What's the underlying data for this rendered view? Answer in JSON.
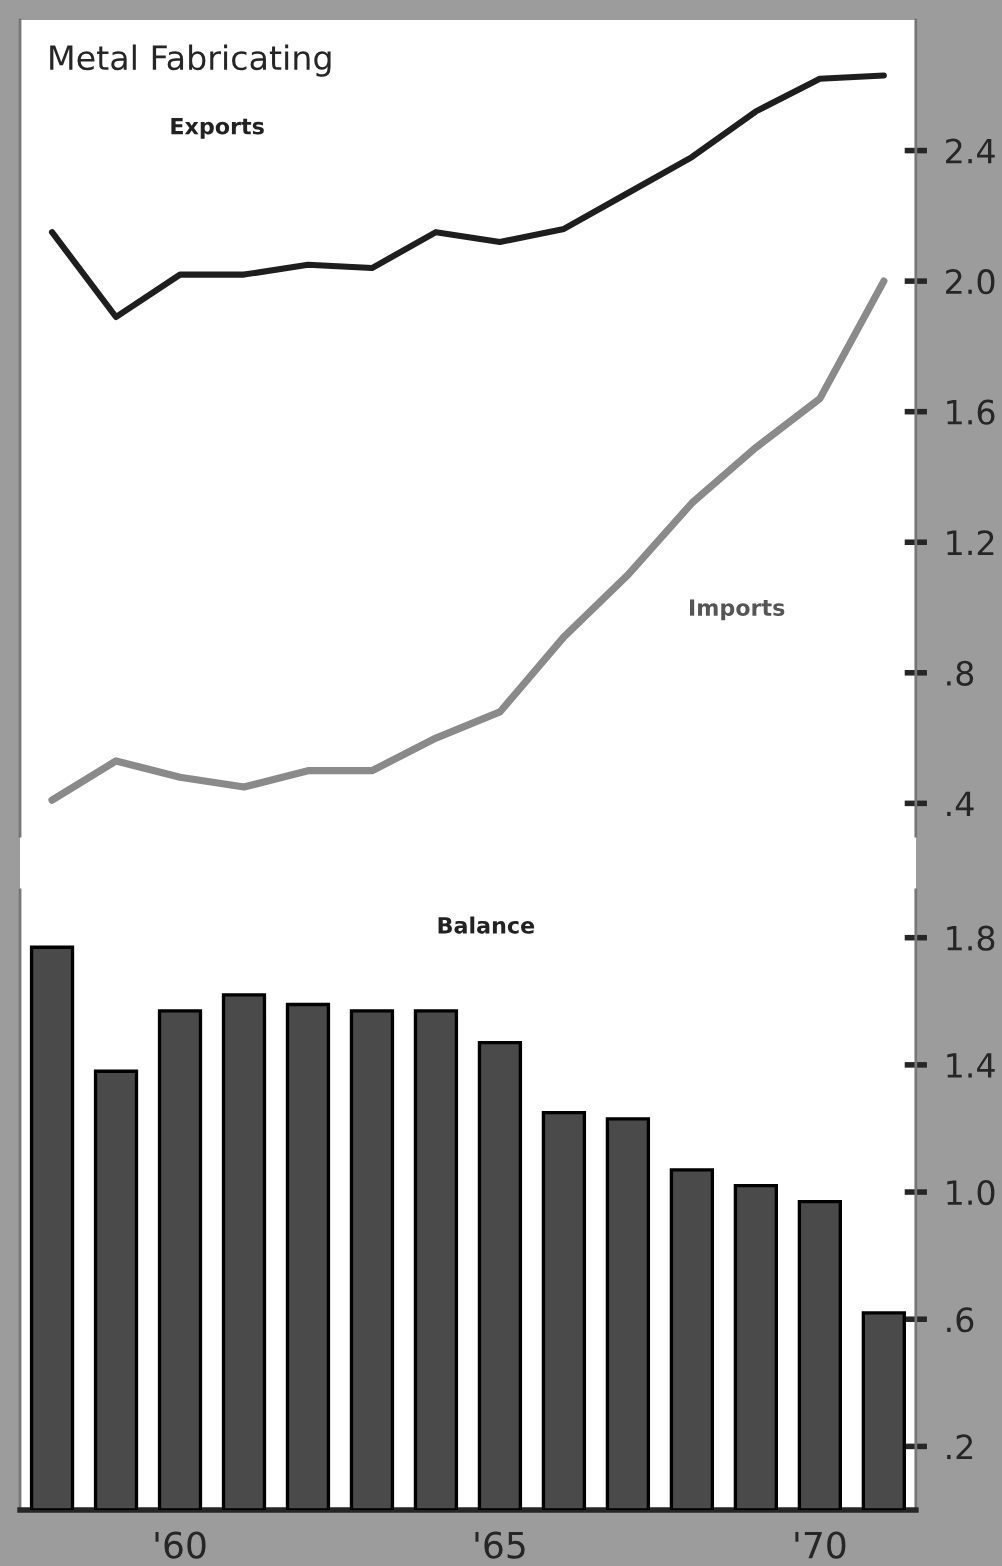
{
  "chart_data": [
    {
      "type": "line",
      "title": "Metal Fabricating",
      "series": [
        {
          "name": "Exports",
          "color": "#1e1e1e",
          "x": [
            1958,
            1959,
            1960,
            1961,
            1962,
            1963,
            1964,
            1965,
            1966,
            1967,
            1968,
            1969,
            1970,
            1971
          ],
          "values": [
            2.15,
            1.89,
            2.02,
            2.02,
            2.05,
            2.04,
            2.15,
            2.12,
            2.16,
            2.27,
            2.38,
            2.52,
            2.62,
            2.63
          ]
        },
        {
          "name": "Imports",
          "color": "#8a8a8a",
          "x": [
            1958,
            1959,
            1960,
            1961,
            1962,
            1963,
            1964,
            1965,
            1966,
            1967,
            1968,
            1969,
            1970,
            1971
          ],
          "values": [
            0.41,
            0.53,
            0.48,
            0.45,
            0.5,
            0.5,
            0.6,
            0.68,
            0.91,
            1.1,
            1.32,
            1.49,
            1.64,
            2.0
          ]
        }
      ],
      "xlim": [
        1957.5,
        1971.5
      ],
      "ylim": [
        0.3,
        2.8
      ],
      "yticks": [
        {
          "value": 0.4,
          "label": ".4"
        },
        {
          "value": 0.8,
          "label": ".8"
        },
        1.2,
        1.6,
        {
          "value": 2.0,
          "label": "2.0"
        },
        2.4
      ],
      "tick_labels": "y",
      "legend": false,
      "grid": false,
      "marker": "none",
      "line_style": "solid"
    },
    {
      "type": "bar",
      "x": [
        1958,
        1959,
        1960,
        1961,
        1962,
        1963,
        1964,
        1965,
        1966,
        1967,
        1968,
        1969,
        1970,
        1971
      ],
      "series": [
        {
          "name": "Balance",
          "color": "#4a4a4a",
          "values": [
            1.77,
            1.38,
            1.57,
            1.62,
            1.59,
            1.57,
            1.57,
            1.47,
            1.25,
            1.23,
            1.07,
            1.02,
            0.97,
            0.62
          ]
        }
      ],
      "xlim": [
        1957.5,
        1971.5
      ],
      "ylim": [
        0,
        1.95
      ],
      "xticks": [
        {
          "value": 1960,
          "label": "'60"
        },
        {
          "value": 1965,
          "label": "'65"
        },
        {
          "value": 1970,
          "label": "'70"
        }
      ],
      "yticks": [
        {
          "value": 0.2,
          "label": ".2"
        },
        {
          "value": 0.6,
          "label": ".6"
        },
        {
          "value": 1.0,
          "label": "1.0"
        },
        1.4,
        1.8
      ],
      "legend": false,
      "grid": false
    }
  ]
}
